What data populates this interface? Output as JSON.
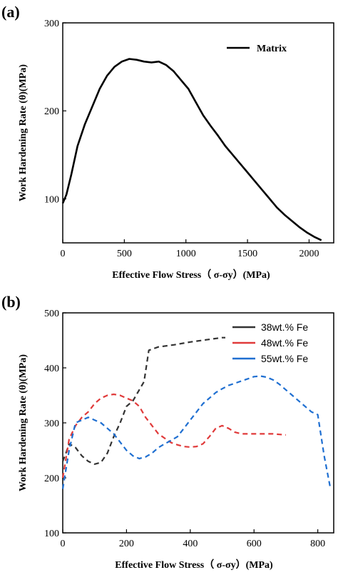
{
  "chart_data": [
    {
      "panel_label": "(a)",
      "type": "line",
      "title": "",
      "xlabel": "Effective Flow Stress（ σ-σy）(MPa)",
      "ylabel": "Work Hardening Rate (θ)(MPa)",
      "xlim": [
        0,
        2200
      ],
      "ylim": [
        50,
        300
      ],
      "xticks": [
        0,
        500,
        1000,
        1500,
        2000
      ],
      "yticks": [
        100,
        200,
        300
      ],
      "legend_placement": "top-right",
      "grid": false,
      "series": [
        {
          "name": "Matrix",
          "color": "#000000",
          "x": [
            0,
            30,
            70,
            120,
            180,
            240,
            300,
            360,
            420,
            480,
            540,
            600,
            660,
            720,
            780,
            840,
            900,
            960,
            1020,
            1080,
            1140,
            1200,
            1260,
            1320,
            1380,
            1440,
            1500,
            1560,
            1620,
            1680,
            1740,
            1800,
            1860,
            1920,
            1980,
            2040,
            2100
          ],
          "y": [
            95,
            105,
            128,
            160,
            185,
            205,
            225,
            240,
            250,
            256,
            259,
            258,
            256,
            255,
            256,
            252,
            245,
            235,
            225,
            210,
            195,
            183,
            172,
            160,
            150,
            140,
            130,
            120,
            110,
            100,
            90,
            82,
            75,
            68,
            62,
            57,
            53
          ]
        }
      ]
    },
    {
      "panel_label": "(b)",
      "type": "line",
      "title": "",
      "xlabel": "Effective Flow Stress（ σ-σy）(MPa)",
      "ylabel": "Work Hardening Rate (θ)(MPa)",
      "xlim": [
        0,
        850
      ],
      "ylim": [
        100,
        500
      ],
      "xticks": [
        0,
        200,
        400,
        600,
        800
      ],
      "yticks": [
        100,
        200,
        300,
        400,
        500
      ],
      "legend_placement": "top-right",
      "grid": false,
      "series": [
        {
          "name": "38wt.% Fe",
          "color": "#333333",
          "x": [
            0,
            10,
            20,
            40,
            60,
            80,
            100,
            120,
            140,
            160,
            180,
            200,
            220,
            240,
            255,
            270,
            300,
            350,
            400,
            450,
            500,
            510
          ],
          "y": [
            230,
            245,
            262,
            255,
            240,
            230,
            225,
            228,
            245,
            275,
            300,
            330,
            340,
            360,
            375,
            432,
            438,
            442,
            447,
            451,
            455,
            455
          ]
        },
        {
          "name": "48wt.% Fe",
          "color": "#e03a3a",
          "x": [
            0,
            10,
            20,
            40,
            60,
            80,
            100,
            120,
            140,
            160,
            180,
            200,
            220,
            240,
            260,
            280,
            300,
            320,
            340,
            360,
            380,
            400,
            420,
            440,
            460,
            480,
            500,
            520,
            540,
            560,
            580,
            600,
            620,
            640,
            660,
            680,
            700
          ],
          "y": [
            200,
            235,
            270,
            295,
            310,
            320,
            335,
            345,
            350,
            352,
            350,
            345,
            340,
            330,
            310,
            295,
            280,
            272,
            264,
            260,
            257,
            256,
            257,
            262,
            275,
            290,
            295,
            290,
            283,
            280,
            280,
            280,
            280,
            280,
            280,
            279,
            278
          ]
        },
        {
          "name": "55wt.% Fe",
          "color": "#1f6fd1",
          "x": [
            0,
            20,
            40,
            60,
            80,
            100,
            120,
            140,
            160,
            180,
            200,
            220,
            240,
            260,
            280,
            300,
            320,
            340,
            360,
            380,
            400,
            420,
            440,
            460,
            480,
            500,
            520,
            540,
            560,
            580,
            600,
            620,
            640,
            660,
            680,
            700,
            720,
            740,
            760,
            780,
            800,
            820,
            840
          ],
          "y": [
            180,
            250,
            300,
            305,
            310,
            305,
            300,
            290,
            280,
            265,
            250,
            240,
            235,
            238,
            245,
            255,
            262,
            268,
            275,
            290,
            305,
            320,
            335,
            345,
            355,
            362,
            368,
            372,
            376,
            380,
            384,
            385,
            383,
            378,
            370,
            360,
            350,
            340,
            330,
            320,
            315,
            240,
            180
          ]
        }
      ]
    }
  ]
}
